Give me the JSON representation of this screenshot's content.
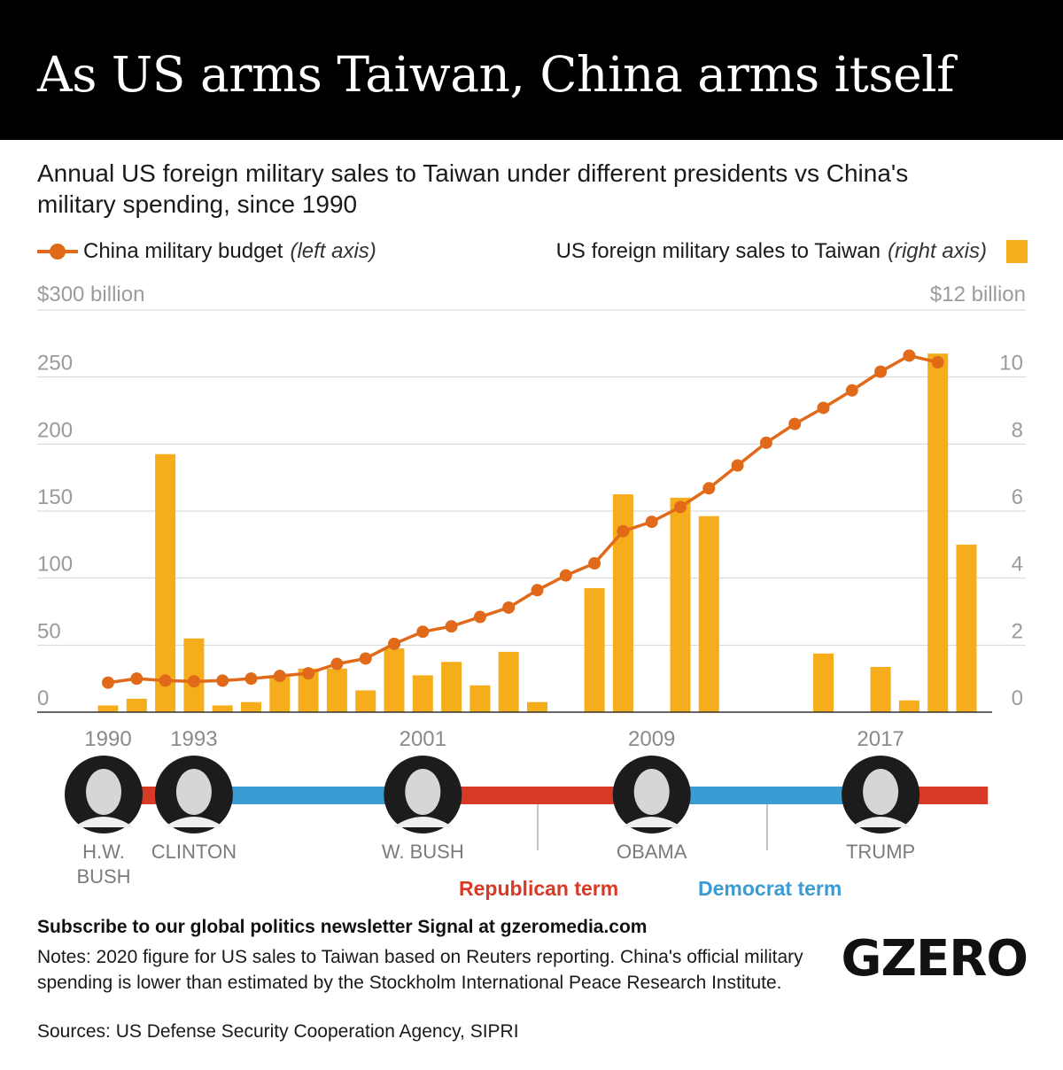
{
  "title": "As US arms Taiwan, China arms itself",
  "subtitle": "Annual US foreign military sales to Taiwan under different presidents vs China's military spending, since 1990",
  "legend": {
    "china_label": "China military budget",
    "china_axis_note": "(left axis)",
    "us_label": "US foreign military sales to Taiwan",
    "us_axis_note": "(right axis)"
  },
  "colors": {
    "china_line": "#e06a1a",
    "us_bars": "#f5ad1c",
    "republican": "#d93a26",
    "democrat": "#3b9bd3",
    "axis_text": "#9b9b9b",
    "gridline": "#d6d6d6"
  },
  "chart_data": {
    "type": "bar",
    "x": [
      1990,
      1991,
      1992,
      1993,
      1994,
      1995,
      1996,
      1997,
      1998,
      1999,
      2000,
      2001,
      2002,
      2003,
      2004,
      2005,
      2006,
      2007,
      2008,
      2009,
      2010,
      2011,
      2012,
      2013,
      2014,
      2015,
      2016,
      2017,
      2018,
      2019,
      2020
    ],
    "series": [
      {
        "name": "US foreign military sales to Taiwan",
        "type": "bar",
        "axis": "right",
        "unit": "$ billion",
        "values": [
          0.2,
          0.4,
          7.7,
          2.2,
          0.2,
          0.3,
          1.1,
          1.3,
          1.3,
          0.65,
          1.9,
          1.1,
          1.5,
          0.8,
          1.8,
          0.3,
          0,
          3.7,
          6.5,
          0,
          6.4,
          5.85,
          0,
          0,
          0,
          1.75,
          0,
          1.35,
          0.35,
          10.7,
          5.0
        ]
      },
      {
        "name": "China military budget",
        "type": "line",
        "axis": "left",
        "unit": "$ billion",
        "values": [
          null,
          null,
          null,
          null,
          null,
          null,
          null,
          null,
          null,
          null,
          null,
          null,
          null,
          null,
          null,
          null,
          null,
          null,
          null,
          null,
          null,
          null,
          null,
          null,
          null,
          null,
          null,
          null,
          null,
          null,
          null
        ],
        "points": [
          [
            1990,
            22
          ],
          [
            1991,
            25
          ],
          [
            1992,
            23.5
          ],
          [
            1993,
            23
          ],
          [
            1994,
            23.5
          ],
          [
            1995,
            25
          ],
          [
            1996,
            27
          ],
          [
            1997,
            29
          ],
          [
            1998,
            36
          ],
          [
            1999,
            40
          ],
          [
            2000,
            51
          ],
          [
            2001,
            60
          ],
          [
            2002,
            64
          ],
          [
            2003,
            71
          ],
          [
            2004,
            78
          ],
          [
            2005,
            91
          ],
          [
            2006,
            102
          ],
          [
            2007,
            111
          ],
          [
            2008,
            135
          ],
          [
            2009,
            142
          ],
          [
            2010,
            153
          ],
          [
            2011,
            167
          ],
          [
            2012,
            184
          ],
          [
            2013,
            201
          ],
          [
            2014,
            215
          ],
          [
            2015,
            227
          ],
          [
            2016,
            240
          ],
          [
            2017,
            254
          ],
          [
            2018,
            266
          ],
          [
            2019,
            261
          ]
        ]
      }
    ],
    "left_axis": {
      "top_label": "$300 billion",
      "ticks": [
        "250",
        "200",
        "150",
        "100",
        "50",
        "0"
      ],
      "tick_values": [
        250,
        200,
        150,
        100,
        50,
        0
      ],
      "range": [
        0,
        300
      ]
    },
    "right_axis": {
      "top_label": "$12 billion",
      "ticks": [
        "10",
        "8",
        "6",
        "4",
        "2",
        "0"
      ],
      "tick_values": [
        10,
        8,
        6,
        4,
        2,
        0
      ],
      "range": [
        0,
        12
      ]
    },
    "year_ticks": [
      "1990",
      "1993",
      "2001",
      "2009",
      "2017"
    ],
    "year_tick_values": [
      1990,
      1993,
      2001,
      2009,
      2017
    ],
    "grid": true,
    "legend_position": "top"
  },
  "timeline": {
    "presidents": [
      {
        "name": "H.W. BUSH",
        "line1": "H.W.",
        "line2": "BUSH",
        "party": "republican",
        "start": 1990,
        "end": 1992
      },
      {
        "name": "CLINTON",
        "party": "democrat",
        "start": 1993,
        "end": 2000
      },
      {
        "name": "W. BUSH",
        "party": "republican",
        "start": 2001,
        "end": 2008
      },
      {
        "name": "OBAMA",
        "party": "democrat",
        "start": 2009,
        "end": 2016
      },
      {
        "name": "TRUMP",
        "party": "republican",
        "start": 2017,
        "end": 2020
      }
    ],
    "republican_label": "Republican term",
    "democrat_label": "Democrat term"
  },
  "footer": {
    "newsletter": "Subscribe to our global politics newsletter Signal at gzeromedia.com",
    "notes": "Notes: 2020 figure for US sales to Taiwan based on Reuters reporting. China's official military spending is lower than estimated by the Stockholm International Peace Research Institute.",
    "sources": "Sources: US Defense Security Cooperation Agency, SIPRI",
    "logo": "GZERO"
  }
}
